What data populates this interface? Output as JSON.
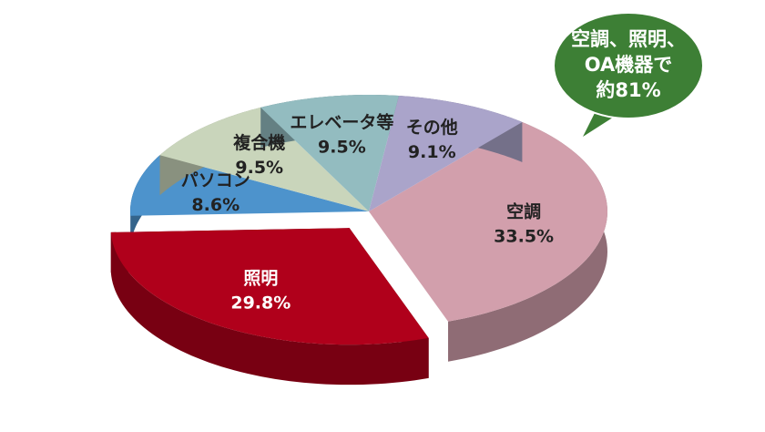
{
  "chart_data": {
    "type": "pie",
    "categories": [
      "空調",
      "照明",
      "パソコン",
      "複合機",
      "エレベータ等",
      "その他"
    ],
    "values": [
      33.5,
      29.8,
      8.6,
      9.5,
      9.5,
      9.1
    ],
    "value_labels": [
      "33.5%",
      "29.8%",
      "8.6%",
      "9.5%",
      "9.5%",
      "9.1%"
    ],
    "colors": [
      "#d29fac",
      "#b0001b",
      "#4d93cc",
      "#c9d5bb",
      "#93bcc0",
      "#aaa4ca"
    ],
    "exploded": "照明",
    "annotation": [
      "空調、照明、",
      "OA機器で",
      "約81%"
    ],
    "annotation_color": "#3d7f35"
  }
}
